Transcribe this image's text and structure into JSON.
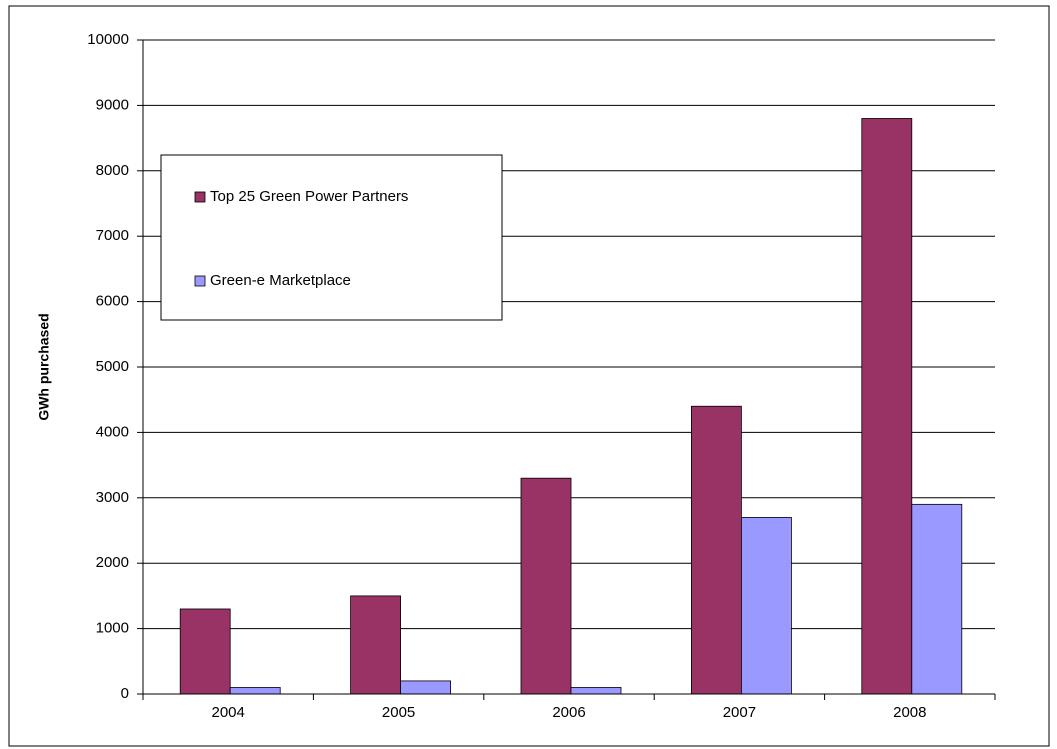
{
  "chart_data": {
    "type": "bar",
    "y_label": "GWh purchased",
    "categories": [
      "2004",
      "2005",
      "2006",
      "2007",
      "2008"
    ],
    "series": [
      {
        "name": "Top 25 Green Power Partners",
        "color": "#993366",
        "values": [
          1300,
          1500,
          3300,
          4400,
          8800
        ]
      },
      {
        "name": "Green-e Marketplace",
        "color": "#9999ff",
        "values": [
          100,
          200,
          100,
          2700,
          2900
        ]
      }
    ],
    "ylim": [
      0,
      10000
    ],
    "yticks": [
      0,
      1000,
      2000,
      3000,
      4000,
      5000,
      6000,
      7000,
      8000,
      9000,
      10000
    ],
    "grid": true
  }
}
